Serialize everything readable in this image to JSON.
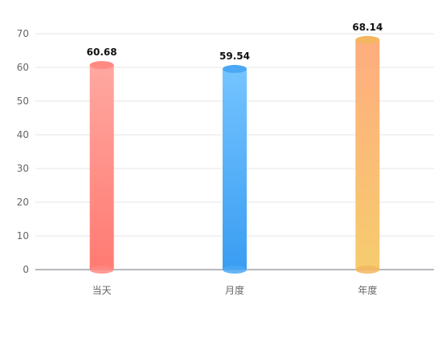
{
  "chart_data": {
    "type": "bar",
    "categories": [
      "当天",
      "月度",
      "年度"
    ],
    "values": [
      60.68,
      59.54,
      68.14
    ],
    "ylim": [
      0,
      70
    ],
    "yticks": [
      0,
      10,
      20,
      30,
      40,
      50,
      60,
      70
    ],
    "grid": true,
    "legend": "none",
    "colors": [
      {
        "top": "#ffa8a0",
        "bottom": "#ff7a72",
        "cap": "#ff8a84"
      },
      {
        "top": "#74c4ff",
        "bottom": "#3a9df2",
        "cap": "#4aa8f5"
      },
      {
        "top": "#ffad7e",
        "bottom": "#f6cc6e",
        "cap": "#f4b660"
      }
    ]
  }
}
